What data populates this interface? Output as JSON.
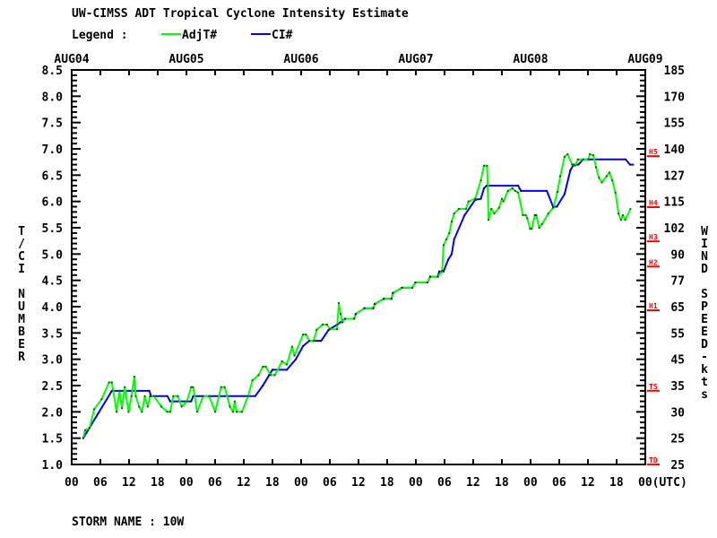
{
  "chart_data": {
    "type": "line",
    "title": "UW-CIMSS ADT Tropical Cyclone Intensity Estimate",
    "legend_label": "Legend :",
    "legend_placement": "top-left",
    "ylabel": "T/CI NUMBER",
    "ylabel_right": "WIND SPEED-kts",
    "xlabel_units": "(UTC)",
    "storm_label": "STORM NAME : 10W",
    "ylim": [
      1.0,
      8.5
    ],
    "xlim_hours": [
      0,
      120
    ],
    "date_labels": [
      "AUG04",
      "AUG05",
      "AUG06",
      "AUG07",
      "AUG08",
      "AUG09"
    ],
    "x_tick_labels": [
      "00",
      "06",
      "12",
      "18",
      "00",
      "06",
      "12",
      "18",
      "00",
      "06",
      "12",
      "18",
      "00",
      "06",
      "12",
      "18",
      "00",
      "06",
      "12",
      "18",
      "00(UTC)"
    ],
    "y_ticks": [
      "1.0",
      "1.5",
      "2.0",
      "2.5",
      "3.0",
      "3.5",
      "4.0",
      "4.5",
      "5.0",
      "5.5",
      "6.0",
      "6.5",
      "7.0",
      "7.5",
      "8.0",
      "8.5"
    ],
    "wind_ticks": [
      "25",
      "25",
      "30",
      "35",
      "45",
      "55",
      "65",
      "77",
      "90",
      "102",
      "115",
      "127",
      "140",
      "155",
      "170",
      "185"
    ],
    "categories": [
      {
        "label": "TD",
        "t": 1.07
      },
      {
        "label": "TS",
        "t": 2.47
      },
      {
        "label": "H1",
        "t": 4.0
      },
      {
        "label": "H2",
        "t": 4.83
      },
      {
        "label": "H3",
        "t": 5.31
      },
      {
        "label": "H4",
        "t": 5.96
      },
      {
        "label": "H5",
        "t": 6.93
      }
    ],
    "series": [
      {
        "name": "AdjT#",
        "color": "#00ff00",
        "points": [
          [
            2.4,
            1.5
          ],
          [
            2.8,
            1.65
          ],
          [
            3.75,
            1.7
          ],
          [
            4.7,
            2.05
          ],
          [
            6.25,
            2.24
          ],
          [
            7.8,
            2.56
          ],
          [
            8.4,
            2.56
          ],
          [
            9.4,
            2.0
          ],
          [
            10,
            2.4
          ],
          [
            10.5,
            2.07
          ],
          [
            11.1,
            2.47
          ],
          [
            11.9,
            2.0
          ],
          [
            12.5,
            2.3
          ],
          [
            13.1,
            2.67
          ],
          [
            13.4,
            2.3
          ],
          [
            14.1,
            2.1
          ],
          [
            14.7,
            2.0
          ],
          [
            15.3,
            2.3
          ],
          [
            15.9,
            2.1
          ],
          [
            16.4,
            2.3
          ],
          [
            17.2,
            2.3
          ],
          [
            18.75,
            2.1
          ],
          [
            20,
            2.0
          ],
          [
            20.6,
            2.0
          ],
          [
            21.25,
            2.3
          ],
          [
            22.2,
            2.3
          ],
          [
            23,
            2.1
          ],
          [
            24.1,
            2.2
          ],
          [
            25,
            2.47
          ],
          [
            25.4,
            2.47
          ],
          [
            26.25,
            2.0
          ],
          [
            27.5,
            2.3
          ],
          [
            28.75,
            2.3
          ],
          [
            30,
            2.0
          ],
          [
            31.25,
            2.47
          ],
          [
            32,
            2.47
          ],
          [
            33.1,
            2.1
          ],
          [
            33.75,
            2.0
          ],
          [
            34.1,
            2.2
          ],
          [
            34.5,
            2.0
          ],
          [
            35.6,
            2.0
          ],
          [
            36.9,
            2.3
          ],
          [
            37.8,
            2.6
          ],
          [
            39.1,
            2.7
          ],
          [
            40,
            2.86
          ],
          [
            40.6,
            2.86
          ],
          [
            41.6,
            2.7
          ],
          [
            42.5,
            2.7
          ],
          [
            44,
            2.96
          ],
          [
            45,
            2.9
          ],
          [
            46.1,
            3.24
          ],
          [
            46.6,
            3.07
          ],
          [
            48.4,
            3.47
          ],
          [
            49,
            3.47
          ],
          [
            49.7,
            3.35
          ],
          [
            50.6,
            3.35
          ],
          [
            51.25,
            3.56
          ],
          [
            52.5,
            3.66
          ],
          [
            53.4,
            3.66
          ],
          [
            54,
            3.57
          ],
          [
            55.5,
            3.57
          ],
          [
            55.9,
            4.07
          ],
          [
            56.25,
            3.86
          ],
          [
            56.6,
            3.7
          ],
          [
            57.2,
            3.77
          ],
          [
            59.1,
            3.77
          ],
          [
            59.4,
            3.86
          ],
          [
            61.25,
            3.97
          ],
          [
            63.1,
            3.97
          ],
          [
            63.4,
            4.05
          ],
          [
            65.3,
            4.15
          ],
          [
            66.9,
            4.15
          ],
          [
            67.2,
            4.26
          ],
          [
            69.1,
            4.36
          ],
          [
            71.25,
            4.36
          ],
          [
            71.9,
            4.46
          ],
          [
            74.4,
            4.46
          ],
          [
            75,
            4.57
          ],
          [
            76.6,
            4.57
          ],
          [
            77.5,
            4.68
          ],
          [
            77.8,
            5.17
          ],
          [
            78.4,
            5.28
          ],
          [
            79,
            5.4
          ],
          [
            79.5,
            5.62
          ],
          [
            80,
            5.77
          ],
          [
            81,
            5.86
          ],
          [
            82.5,
            5.86
          ],
          [
            83,
            6.0
          ],
          [
            84.4,
            6.05
          ],
          [
            85.6,
            6.4
          ],
          [
            86.25,
            6.68
          ],
          [
            86.9,
            6.68
          ],
          [
            87.2,
            5.65
          ],
          [
            87.8,
            5.86
          ],
          [
            88.4,
            5.77
          ],
          [
            89.4,
            5.88
          ],
          [
            90,
            6.05
          ],
          [
            90.3,
            6.0
          ],
          [
            91.25,
            6.2
          ],
          [
            92.2,
            6.25
          ],
          [
            92.8,
            6.2
          ],
          [
            93.4,
            6.17
          ],
          [
            94.4,
            5.74
          ],
          [
            95,
            5.74
          ],
          [
            95.3,
            5.68
          ],
          [
            95.9,
            5.48
          ],
          [
            96.25,
            5.48
          ],
          [
            96.9,
            5.74
          ],
          [
            97.2,
            5.74
          ],
          [
            97.8,
            5.5
          ],
          [
            98.4,
            5.57
          ],
          [
            99.7,
            5.77
          ],
          [
            100.75,
            5.88
          ],
          [
            101.6,
            6.18
          ],
          [
            102.2,
            6.48
          ],
          [
            103.1,
            6.85
          ],
          [
            103.75,
            6.9
          ],
          [
            104.7,
            6.7
          ],
          [
            105.3,
            6.68
          ],
          [
            105.9,
            6.8
          ],
          [
            108.1,
            6.8
          ],
          [
            108.4,
            6.9
          ],
          [
            109.1,
            6.88
          ],
          [
            109.7,
            6.65
          ],
          [
            110.3,
            6.45
          ],
          [
            110.9,
            6.36
          ],
          [
            111.9,
            6.48
          ],
          [
            112.5,
            6.55
          ],
          [
            113.1,
            6.4
          ],
          [
            113.75,
            6.17
          ],
          [
            114.4,
            5.77
          ],
          [
            114.9,
            5.65
          ],
          [
            115.3,
            5.74
          ],
          [
            115.8,
            5.65
          ],
          [
            116.9,
            5.86
          ]
        ]
      },
      {
        "name": "CI#",
        "color": "#0000ff",
        "points": [
          [
            2.4,
            1.5
          ],
          [
            8.4,
            2.4
          ],
          [
            16.25,
            2.4
          ],
          [
            16.6,
            2.3
          ],
          [
            20,
            2.3
          ],
          [
            20.6,
            2.2
          ],
          [
            25,
            2.2
          ],
          [
            25.4,
            2.3
          ],
          [
            38.4,
            2.3
          ],
          [
            40,
            2.5
          ],
          [
            41.3,
            2.7
          ],
          [
            42,
            2.8
          ],
          [
            45,
            2.8
          ],
          [
            46.9,
            3.0
          ],
          [
            48.4,
            3.25
          ],
          [
            49.7,
            3.35
          ],
          [
            52.2,
            3.35
          ],
          [
            53.75,
            3.56
          ],
          [
            55.6,
            3.66
          ],
          [
            57.2,
            3.77
          ],
          [
            59.1,
            3.77
          ],
          [
            59.4,
            3.86
          ],
          [
            61.25,
            3.97
          ],
          [
            63.1,
            3.97
          ],
          [
            63.4,
            4.05
          ],
          [
            65.3,
            4.15
          ],
          [
            66.9,
            4.15
          ],
          [
            67.2,
            4.26
          ],
          [
            69.1,
            4.36
          ],
          [
            71.25,
            4.36
          ],
          [
            71.9,
            4.46
          ],
          [
            74.4,
            4.46
          ],
          [
            75,
            4.57
          ],
          [
            76.6,
            4.57
          ],
          [
            76.9,
            4.67
          ],
          [
            77.8,
            4.67
          ],
          [
            78.75,
            4.89
          ],
          [
            79.5,
            5.0
          ],
          [
            80,
            5.28
          ],
          [
            82.2,
            5.74
          ],
          [
            84.4,
            6.03
          ],
          [
            85.6,
            6.05
          ],
          [
            86.25,
            6.25
          ],
          [
            86.8,
            6.3
          ],
          [
            93.4,
            6.3
          ],
          [
            94,
            6.2
          ],
          [
            99.4,
            6.2
          ],
          [
            100.7,
            5.9
          ],
          [
            101.5,
            5.9
          ],
          [
            103.1,
            6.14
          ],
          [
            104.3,
            6.59
          ],
          [
            105,
            6.7
          ],
          [
            106,
            6.7
          ],
          [
            107,
            6.8
          ],
          [
            115.9,
            6.8
          ],
          [
            116.8,
            6.7
          ],
          [
            117.5,
            6.7
          ]
        ]
      }
    ]
  }
}
